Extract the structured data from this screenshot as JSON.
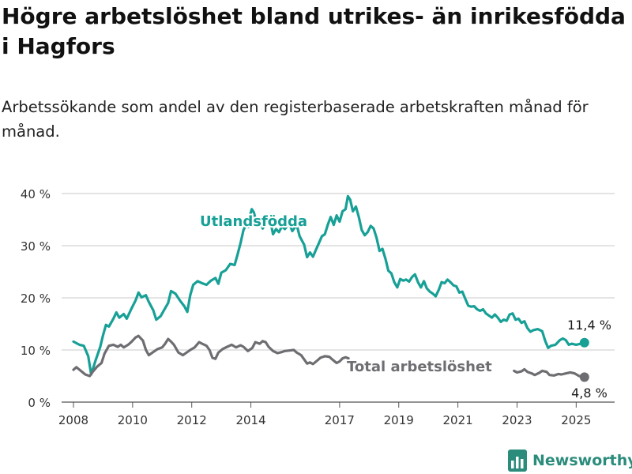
{
  "title": "Högre arbetslöshet bland utrikes- än inrikesfödda i Hagfors",
  "subtitle": "Arbetssökande som andel av den registerbaserade arbetskraften månad för månad.",
  "brand": {
    "name": "Newsworthy",
    "color": "#2b8c7c",
    "icon": "bar-chart-icon"
  },
  "chart_data": {
    "type": "line",
    "title": "Högre arbetslöshet bland utrikes- än inrikesfödda i Hagfors",
    "subtitle": "Arbetssökande som andel av den registerbaserade arbetskraften månad för månad.",
    "xlabel": "",
    "ylabel": "",
    "xlim": [
      2007.6,
      2026.3
    ],
    "ylim": [
      0,
      40
    ],
    "grid": true,
    "x_ticks": [
      2008,
      2010,
      2012,
      2014,
      2017,
      2019,
      2021,
      2023,
      2025
    ],
    "x_tick_labels": [
      "2008",
      "2010",
      "2012",
      "2014",
      "2017",
      "2019",
      "2021",
      "2023",
      "2025"
    ],
    "y_ticks": [
      0,
      10,
      20,
      30,
      40
    ],
    "y_tick_labels": [
      "0 %",
      "10 %",
      "20 %",
      "30 %",
      "40 %"
    ],
    "series": [
      {
        "name": "Utlandsfödda",
        "color": "#17a096",
        "end_label": "11,4 %",
        "points": [
          [
            2008.0,
            11.6
          ],
          [
            2008.2,
            11.0
          ],
          [
            2008.35,
            10.8
          ],
          [
            2008.5,
            8.8
          ],
          [
            2008.6,
            5.3
          ],
          [
            2008.75,
            8.0
          ],
          [
            2008.9,
            10.5
          ],
          [
            2009.0,
            12.8
          ],
          [
            2009.1,
            14.8
          ],
          [
            2009.2,
            14.5
          ],
          [
            2009.35,
            16.0
          ],
          [
            2009.45,
            17.2
          ],
          [
            2009.55,
            16.2
          ],
          [
            2009.7,
            16.9
          ],
          [
            2009.8,
            16.0
          ],
          [
            2009.95,
            17.8
          ],
          [
            2010.1,
            19.5
          ],
          [
            2010.2,
            21.0
          ],
          [
            2010.3,
            20.1
          ],
          [
            2010.45,
            20.5
          ],
          [
            2010.55,
            19.2
          ],
          [
            2010.7,
            17.6
          ],
          [
            2010.8,
            15.8
          ],
          [
            2010.95,
            16.5
          ],
          [
            2011.05,
            17.5
          ],
          [
            2011.2,
            19.0
          ],
          [
            2011.3,
            21.3
          ],
          [
            2011.45,
            20.8
          ],
          [
            2011.6,
            19.5
          ],
          [
            2011.75,
            18.4
          ],
          [
            2011.85,
            17.3
          ],
          [
            2011.95,
            20.5
          ],
          [
            2012.05,
            22.5
          ],
          [
            2012.2,
            23.2
          ],
          [
            2012.35,
            22.8
          ],
          [
            2012.5,
            22.5
          ],
          [
            2012.65,
            23.3
          ],
          [
            2012.8,
            23.8
          ],
          [
            2012.9,
            22.7
          ],
          [
            2013.0,
            24.8
          ],
          [
            2013.15,
            25.3
          ],
          [
            2013.3,
            26.5
          ],
          [
            2013.45,
            26.3
          ],
          [
            2013.55,
            28.3
          ],
          [
            2013.65,
            30.5
          ],
          [
            2013.75,
            33.0
          ],
          [
            2013.85,
            34.2
          ],
          [
            2013.92,
            33.6
          ],
          [
            2013.97,
            35.8
          ],
          [
            2014.03,
            37.0
          ],
          [
            2014.1,
            36.4
          ],
          [
            2014.2,
            34.2
          ],
          [
            2014.3,
            35.0
          ],
          [
            2014.4,
            33.3
          ],
          [
            2014.5,
            34.3
          ],
          [
            2014.6,
            35.4
          ],
          [
            2014.7,
            33.6
          ],
          [
            2014.75,
            32.2
          ],
          [
            2014.85,
            33.2
          ],
          [
            2014.95,
            32.6
          ],
          [
            2015.05,
            33.7
          ],
          [
            2015.15,
            33.2
          ],
          [
            2015.3,
            34.2
          ],
          [
            2015.4,
            32.8
          ],
          [
            2015.55,
            34.0
          ],
          [
            2015.65,
            31.8
          ],
          [
            2015.8,
            30.2
          ],
          [
            2015.9,
            27.8
          ],
          [
            2016.0,
            28.7
          ],
          [
            2016.1,
            27.9
          ],
          [
            2016.2,
            29.2
          ],
          [
            2016.3,
            30.5
          ],
          [
            2016.4,
            31.8
          ],
          [
            2016.5,
            32.2
          ],
          [
            2016.6,
            34.0
          ],
          [
            2016.7,
            35.5
          ],
          [
            2016.8,
            34.0
          ],
          [
            2016.9,
            35.8
          ],
          [
            2017.0,
            34.6
          ],
          [
            2017.1,
            36.6
          ],
          [
            2017.2,
            37.0
          ],
          [
            2017.28,
            39.5
          ],
          [
            2017.36,
            38.8
          ],
          [
            2017.45,
            36.6
          ],
          [
            2017.55,
            37.5
          ],
          [
            2017.65,
            35.5
          ],
          [
            2017.75,
            33.0
          ],
          [
            2017.85,
            32.0
          ],
          [
            2017.95,
            32.6
          ],
          [
            2018.05,
            33.8
          ],
          [
            2018.15,
            33.3
          ],
          [
            2018.25,
            31.5
          ],
          [
            2018.35,
            29.0
          ],
          [
            2018.45,
            29.4
          ],
          [
            2018.55,
            27.5
          ],
          [
            2018.65,
            25.2
          ],
          [
            2018.75,
            24.7
          ],
          [
            2018.85,
            23.0
          ],
          [
            2018.95,
            22.0
          ],
          [
            2019.05,
            23.6
          ],
          [
            2019.15,
            23.3
          ],
          [
            2019.25,
            23.5
          ],
          [
            2019.35,
            23.1
          ],
          [
            2019.45,
            24.0
          ],
          [
            2019.55,
            24.5
          ],
          [
            2019.65,
            23.0
          ],
          [
            2019.75,
            22.0
          ],
          [
            2019.85,
            23.2
          ],
          [
            2019.95,
            21.8
          ],
          [
            2020.05,
            21.2
          ],
          [
            2020.15,
            20.8
          ],
          [
            2020.25,
            20.3
          ],
          [
            2020.35,
            21.5
          ],
          [
            2020.45,
            23.0
          ],
          [
            2020.55,
            22.8
          ],
          [
            2020.65,
            23.5
          ],
          [
            2020.75,
            23.0
          ],
          [
            2020.85,
            22.4
          ],
          [
            2020.95,
            22.2
          ],
          [
            2021.05,
            21.0
          ],
          [
            2021.15,
            21.2
          ],
          [
            2021.25,
            19.8
          ],
          [
            2021.35,
            18.5
          ],
          [
            2021.45,
            18.3
          ],
          [
            2021.55,
            18.4
          ],
          [
            2021.65,
            17.8
          ],
          [
            2021.75,
            17.5
          ],
          [
            2021.85,
            17.8
          ],
          [
            2021.95,
            17.0
          ],
          [
            2022.05,
            16.6
          ],
          [
            2022.15,
            16.2
          ],
          [
            2022.25,
            16.8
          ],
          [
            2022.35,
            16.2
          ],
          [
            2022.45,
            15.4
          ],
          [
            2022.55,
            15.8
          ],
          [
            2022.65,
            15.6
          ],
          [
            2022.75,
            16.8
          ],
          [
            2022.85,
            17.0
          ],
          [
            2022.95,
            15.8
          ],
          [
            2023.05,
            16.0
          ],
          [
            2023.15,
            15.2
          ],
          [
            2023.25,
            15.5
          ],
          [
            2023.35,
            14.2
          ],
          [
            2023.45,
            13.5
          ],
          [
            2023.55,
            13.8
          ],
          [
            2023.7,
            14.0
          ],
          [
            2023.85,
            13.6
          ],
          [
            2023.95,
            11.8
          ],
          [
            2024.05,
            10.4
          ],
          [
            2024.15,
            10.8
          ],
          [
            2024.3,
            11.0
          ],
          [
            2024.45,
            11.9
          ],
          [
            2024.55,
            12.2
          ],
          [
            2024.65,
            11.9
          ],
          [
            2024.75,
            11.0
          ],
          [
            2024.85,
            11.2
          ],
          [
            2025.0,
            11.0
          ],
          [
            2025.15,
            11.2
          ],
          [
            2025.28,
            11.4
          ]
        ]
      },
      {
        "name": "Total arbetslöshet",
        "color": "#6e6e72",
        "end_label": "4,8 %",
        "points": [
          [
            2008.0,
            6.2
          ],
          [
            2008.1,
            6.7
          ],
          [
            2008.25,
            6.0
          ],
          [
            2008.4,
            5.3
          ],
          [
            2008.55,
            5.0
          ],
          [
            2008.65,
            5.8
          ],
          [
            2008.8,
            6.8
          ],
          [
            2008.95,
            7.5
          ],
          [
            2009.05,
            9.3
          ],
          [
            2009.2,
            10.8
          ],
          [
            2009.35,
            11.0
          ],
          [
            2009.5,
            10.6
          ],
          [
            2009.6,
            11.0
          ],
          [
            2009.7,
            10.5
          ],
          [
            2009.85,
            11.0
          ],
          [
            2009.95,
            11.5
          ],
          [
            2010.1,
            12.4
          ],
          [
            2010.2,
            12.7
          ],
          [
            2010.35,
            11.8
          ],
          [
            2010.45,
            10.0
          ],
          [
            2010.55,
            9.0
          ],
          [
            2010.7,
            9.6
          ],
          [
            2010.85,
            10.2
          ],
          [
            2011.0,
            10.5
          ],
          [
            2011.1,
            11.2
          ],
          [
            2011.2,
            12.1
          ],
          [
            2011.3,
            11.6
          ],
          [
            2011.4,
            11.0
          ],
          [
            2011.55,
            9.5
          ],
          [
            2011.7,
            9.0
          ],
          [
            2011.8,
            9.4
          ],
          [
            2011.95,
            10.0
          ],
          [
            2012.1,
            10.5
          ],
          [
            2012.25,
            11.5
          ],
          [
            2012.35,
            11.2
          ],
          [
            2012.5,
            10.8
          ],
          [
            2012.6,
            10.0
          ],
          [
            2012.7,
            8.5
          ],
          [
            2012.8,
            8.3
          ],
          [
            2012.9,
            9.5
          ],
          [
            2013.05,
            10.2
          ],
          [
            2013.2,
            10.6
          ],
          [
            2013.35,
            11.0
          ],
          [
            2013.5,
            10.5
          ],
          [
            2013.65,
            10.9
          ],
          [
            2013.75,
            10.6
          ],
          [
            2013.9,
            9.8
          ],
          [
            2014.05,
            10.4
          ],
          [
            2014.15,
            11.5
          ],
          [
            2014.3,
            11.2
          ],
          [
            2014.4,
            11.7
          ],
          [
            2014.5,
            11.5
          ],
          [
            2014.6,
            10.6
          ],
          [
            2014.75,
            9.8
          ],
          [
            2014.9,
            9.4
          ],
          [
            2015.05,
            9.6
          ],
          [
            2015.15,
            9.8
          ],
          [
            2015.3,
            9.9
          ],
          [
            2015.45,
            10.0
          ],
          [
            2015.55,
            9.5
          ],
          [
            2015.7,
            9.0
          ],
          [
            2015.8,
            8.2
          ],
          [
            2015.9,
            7.4
          ],
          [
            2016.0,
            7.6
          ],
          [
            2016.1,
            7.3
          ],
          [
            2016.25,
            8.0
          ],
          [
            2016.35,
            8.5
          ],
          [
            2016.5,
            8.8
          ],
          [
            2016.65,
            8.7
          ],
          [
            2016.75,
            8.2
          ],
          [
            2016.9,
            7.5
          ],
          [
            2017.0,
            7.8
          ],
          [
            2017.1,
            8.4
          ],
          [
            2017.2,
            8.6
          ],
          [
            2017.3,
            8.4
          ],
          [
            2022.9,
            6.0
          ],
          [
            2023.0,
            5.7
          ],
          [
            2023.15,
            5.9
          ],
          [
            2023.25,
            6.3
          ],
          [
            2023.35,
            5.8
          ],
          [
            2023.5,
            5.5
          ],
          [
            2023.6,
            5.2
          ],
          [
            2023.75,
            5.6
          ],
          [
            2023.85,
            6.0
          ],
          [
            2024.0,
            5.8
          ],
          [
            2024.1,
            5.2
          ],
          [
            2024.25,
            5.1
          ],
          [
            2024.4,
            5.4
          ],
          [
            2024.5,
            5.3
          ],
          [
            2024.65,
            5.5
          ],
          [
            2024.8,
            5.7
          ],
          [
            2024.95,
            5.5
          ],
          [
            2025.1,
            5.0
          ],
          [
            2025.28,
            4.8
          ]
        ]
      }
    ]
  }
}
